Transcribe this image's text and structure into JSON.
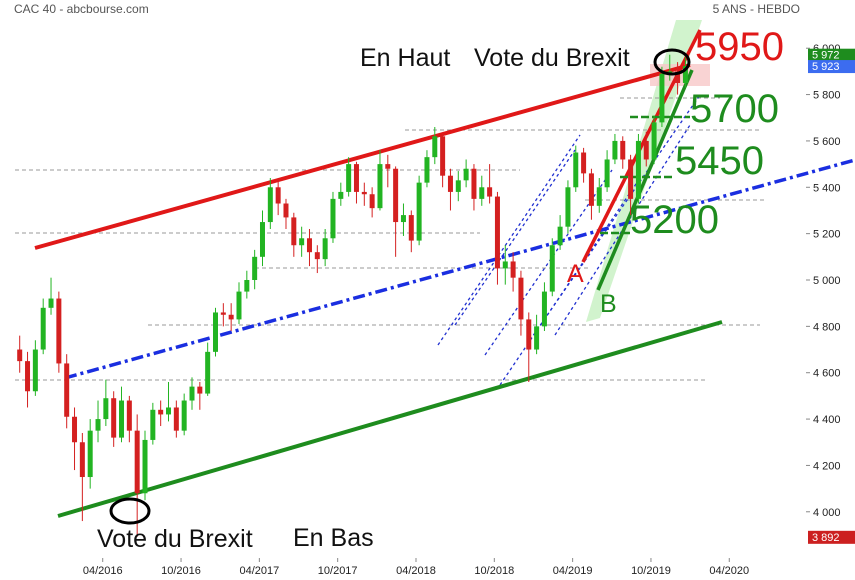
{
  "chart_data": {
    "type": "candlestick",
    "title": "CAC 40 - abcbourse.com",
    "subtitle": "5 ANS - HEBDO",
    "x": [
      2015.72,
      2015.77,
      2015.82,
      2015.87,
      2015.92,
      2015.97,
      2016.02,
      2016.07,
      2016.12,
      2016.17,
      2016.22,
      2016.27,
      2016.32,
      2016.37,
      2016.42,
      2016.47,
      2016.52,
      2016.57,
      2016.62,
      2016.67,
      2016.72,
      2016.77,
      2016.82,
      2016.87,
      2016.92,
      2016.97,
      2017.02,
      2017.07,
      2017.12,
      2017.17,
      2017.22,
      2017.27,
      2017.32,
      2017.37,
      2017.42,
      2017.47,
      2017.52,
      2017.57,
      2017.62,
      2017.67,
      2017.72,
      2017.77,
      2017.82,
      2017.87,
      2017.92,
      2017.97,
      2018.02,
      2018.07,
      2018.12,
      2018.17,
      2018.22,
      2018.27,
      2018.32,
      2018.37,
      2018.42,
      2018.47,
      2018.52,
      2018.57,
      2018.62,
      2018.67,
      2018.72,
      2018.77,
      2018.82,
      2018.87,
      2018.92,
      2018.97,
      2019.02,
      2019.07,
      2019.12,
      2019.17,
      2019.22,
      2019.27,
      2019.32,
      2019.37,
      2019.42,
      2019.47,
      2019.52,
      2019.57,
      2019.62,
      2019.67,
      2019.72,
      2019.77,
      2019.82,
      2019.87,
      2019.92,
      2019.97
    ],
    "open": [
      4700,
      4650,
      4520,
      4700,
      4880,
      4920,
      4640,
      4410,
      4300,
      4150,
      4350,
      4400,
      4490,
      4320,
      4480,
      4350,
      4080,
      4310,
      4440,
      4420,
      4450,
      4350,
      4480,
      4540,
      4510,
      4690,
      4860,
      4850,
      4830,
      4950,
      5000,
      5100,
      5250,
      5400,
      5330,
      5270,
      5150,
      5180,
      5120,
      5090,
      5180,
      5350,
      5380,
      5500,
      5380,
      5370,
      5310,
      5500,
      5480,
      5250,
      5280,
      5170,
      5420,
      5530,
      5620,
      5450,
      5380,
      5430,
      5480,
      5350,
      5400,
      5360,
      5050,
      5080,
      5010,
      4830,
      4700,
      4800,
      4950,
      5150,
      5230,
      5400,
      5550,
      5460,
      5320,
      5400,
      5520,
      5600,
      5520,
      5350,
      5600,
      5520,
      5680,
      5890,
      5900,
      5850
    ],
    "high": [
      4760,
      4690,
      4740,
      4920,
      5010,
      4950,
      4680,
      4450,
      4340,
      4400,
      4480,
      4570,
      4520,
      4540,
      4500,
      4420,
      4350,
      4470,
      4480,
      4560,
      4480,
      4510,
      4580,
      4560,
      4730,
      4880,
      4900,
      4900,
      4990,
      5040,
      5130,
      5300,
      5440,
      5430,
      5350,
      5290,
      5230,
      5220,
      5150,
      5220,
      5380,
      5420,
      5530,
      5510,
      5420,
      5400,
      5560,
      5540,
      5490,
      5330,
      5300,
      5450,
      5560,
      5660,
      5630,
      5480,
      5470,
      5520,
      5500,
      5450,
      5500,
      5380,
      5150,
      5120,
      5040,
      4860,
      4850,
      4990,
      5180,
      5280,
      5430,
      5580,
      5570,
      5480,
      5440,
      5560,
      5630,
      5620,
      5540,
      5630,
      5640,
      5710,
      5920,
      5972,
      5940,
      5960
    ],
    "low": [
      4600,
      4450,
      4500,
      4680,
      4850,
      4600,
      4360,
      4180,
      3960,
      4100,
      4300,
      4370,
      4280,
      4300,
      4300,
      3892,
      4050,
      4290,
      4370,
      4390,
      4320,
      4330,
      4440,
      4440,
      4500,
      4670,
      4800,
      4780,
      4810,
      4920,
      4960,
      5060,
      5220,
      5280,
      5220,
      5100,
      5100,
      5060,
      5030,
      5060,
      5160,
      5320,
      5360,
      5330,
      5320,
      5270,
      5300,
      5400,
      5100,
      5190,
      5120,
      5150,
      5400,
      5500,
      5400,
      5300,
      5340,
      5400,
      5300,
      5320,
      5330,
      4980,
      4980,
      4950,
      4760,
      4560,
      4680,
      4780,
      4930,
      5130,
      5200,
      5380,
      5420,
      5260,
      5290,
      5380,
      5500,
      5480,
      5280,
      5330,
      5490,
      5500,
      5660,
      5860,
      5800,
      5830
    ],
    "close": [
      4650,
      4520,
      4700,
      4880,
      4920,
      4640,
      4410,
      4300,
      4150,
      4350,
      4400,
      4490,
      4320,
      4480,
      4350,
      4080,
      4310,
      4440,
      4420,
      4450,
      4350,
      4480,
      4540,
      4510,
      4690,
      4860,
      4850,
      4830,
      4950,
      5000,
      5100,
      5250,
      5400,
      5330,
      5270,
      5150,
      5180,
      5120,
      5090,
      5180,
      5350,
      5380,
      5500,
      5380,
      5370,
      5310,
      5500,
      5480,
      5250,
      5280,
      5170,
      5420,
      5530,
      5620,
      5450,
      5380,
      5430,
      5480,
      5350,
      5400,
      5360,
      5050,
      5080,
      5010,
      4830,
      4700,
      4800,
      4950,
      5150,
      5230,
      5400,
      5550,
      5460,
      5320,
      5400,
      5520,
      5600,
      5520,
      5350,
      5600,
      5520,
      5680,
      5890,
      5900,
      5850,
      5923
    ],
    "up_color": "#22b422",
    "down_color": "#d42020",
    "xlim": [
      2015.69,
      2020.51
    ],
    "xticks": [
      {
        "value": 2016.25,
        "label": "04/2016"
      },
      {
        "value": 2016.75,
        "label": "10/2016"
      },
      {
        "value": 2017.25,
        "label": "04/2017"
      },
      {
        "value": 2017.75,
        "label": "10/2017"
      },
      {
        "value": 2018.25,
        "label": "04/2018"
      },
      {
        "value": 2018.75,
        "label": "10/2018"
      },
      {
        "value": 2019.25,
        "label": "04/2019"
      },
      {
        "value": 2019.75,
        "label": "10/2019"
      },
      {
        "value": 2020.25,
        "label": "04/2020"
      }
    ],
    "ylim": [
      3792,
      6208
    ],
    "yticks": [
      {
        "value": 4000,
        "label": "4 000"
      },
      {
        "value": 4200,
        "label": "4 200"
      },
      {
        "value": 4400,
        "label": "4 400"
      },
      {
        "value": 4600,
        "label": "4 600"
      },
      {
        "value": 4800,
        "label": "4 800"
      },
      {
        "value": 5000,
        "label": "5 000"
      },
      {
        "value": 5200,
        "label": "5 200"
      },
      {
        "value": 5400,
        "label": "5 400"
      },
      {
        "value": 5600,
        "label": "5 600"
      },
      {
        "value": 5800,
        "label": "5 800"
      },
      {
        "value": 6000,
        "label": "6 000"
      }
    ],
    "price_labels": [
      {
        "value": 5972,
        "label": "5 972",
        "color": "#1e8c1e"
      },
      {
        "value": 5923,
        "label": "5 923",
        "color": "#3c6cf0"
      },
      {
        "value": 3892,
        "label": "3 892",
        "color": "#cc2020"
      }
    ],
    "annotations": [
      "En Haut",
      "Vote du Brexit",
      "Vote du Brexit",
      "En Bas",
      "5950",
      "5700",
      "5450",
      "5200",
      "A",
      "B"
    ]
  }
}
